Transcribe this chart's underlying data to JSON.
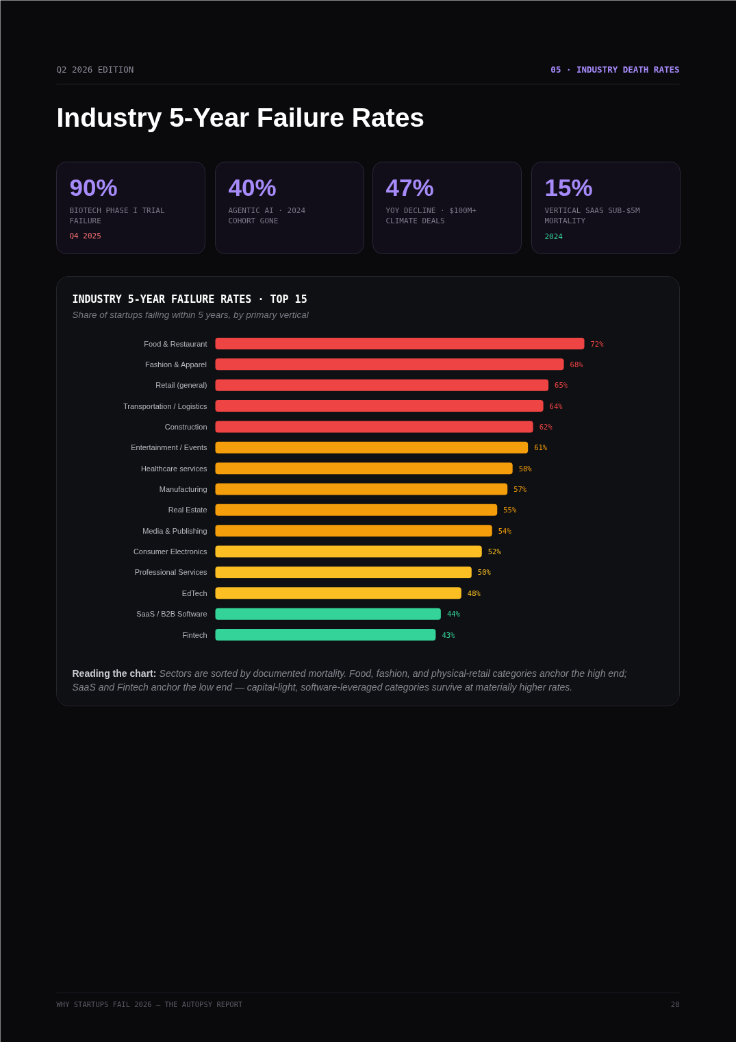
{
  "chart_data": [
    {
      "type": "other",
      "title": "Industry 5-Year Failure Rates",
      "annotations": [
        "Q2 2026 EDITION",
        "05 · INDUSTRY DEATH RATES"
      ]
    },
    {
      "type": "other",
      "title": "90%",
      "subtitle": "BIOTECH PHASE I TRIAL FAILURE",
      "annotations": [
        "Q4 2025"
      ],
      "color": "#f87171"
    },
    {
      "type": "other",
      "title": "40%",
      "subtitle": "AGENTIC AI · 2024 COHORT GONE"
    },
    {
      "type": "other",
      "title": "47%",
      "subtitle": "YOY DECLINE · $100M+ CLIMATE DEALS"
    },
    {
      "type": "other",
      "title": "15%",
      "subtitle": "VERTICAL SAAS SUB-$5M MORTALITY",
      "annotations": [
        "2024"
      ],
      "color": "#34d399"
    },
    {
      "type": "bar",
      "orientation": "horizontal",
      "title": "INDUSTRY 5-YEAR FAILURE RATES · TOP 15",
      "subtitle": "Share of startups failing within 5 years, by primary vertical",
      "categories": [
        "Food & Restaurant",
        "Fashion & Apparel",
        "Retail (general)",
        "Transportation / Logistics",
        "Construction",
        "Entertainment / Events",
        "Healthcare services",
        "Manufacturing",
        "Real Estate",
        "Media & Publishing",
        "Consumer Electronics",
        "Professional Services",
        "EdTech",
        "SaaS / B2B Software",
        "Fintech"
      ],
      "values": [
        72,
        68,
        65,
        64,
        62,
        61,
        58,
        57,
        55,
        54,
        52,
        50,
        48,
        44,
        43
      ],
      "colors": [
        "#ef4444",
        "#ef4444",
        "#ef4444",
        "#ef4444",
        "#ef4444",
        "#f59e0b",
        "#f59e0b",
        "#f59e0b",
        "#f59e0b",
        "#f59e0b",
        "#fbbf24",
        "#fbbf24",
        "#fbbf24",
        "#34d399",
        "#34d399"
      ],
      "value_labels": [
        "72%",
        "68%",
        "65%",
        "64%",
        "62%",
        "61%",
        "58%",
        "57%",
        "55%",
        "54%",
        "52%",
        "50%",
        "48%",
        "44%",
        "43%"
      ],
      "tick_labels": "y",
      "annotations": [
        "Reading the chart:",
        "Sectors are sorted by documented mortality. Food, fashion, and physical-retail categories anchor the high end; SaaS and Fintech anchor the low end — capital-light, software-leveraged categories survive at materially higher rates."
      ]
    },
    {
      "type": "other",
      "annotations": [
        "WHY STARTUPS FAIL 2026 — THE AUTOPSY REPORT",
        "28"
      ]
    }
  ]
}
